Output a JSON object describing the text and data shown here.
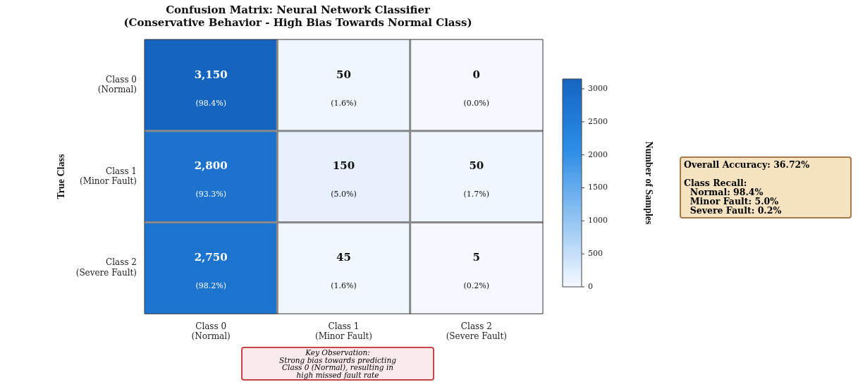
{
  "chart_data": {
    "type": "heatmap",
    "title": "Confusion Matrix: Neural Network Classifier",
    "subtitle": "(Conservative Behavior - High Bias Towards Normal Class)",
    "ylabel": "True Class",
    "clabel": "Number of Samples",
    "categories": [
      "Class 0\n(Normal)",
      "Class 1\n(Minor Fault)",
      "Class 2\n(Severe Fault)"
    ],
    "y_categories": [
      "Class 0\n(Normal)",
      "Class 1\n(Minor Fault)",
      "Class 2\n(Severe Fault)"
    ],
    "cells": [
      [
        3150,
        50,
        0
      ],
      [
        2800,
        150,
        50
      ],
      [
        2750,
        45,
        5
      ]
    ],
    "cell_labels": [
      [
        "3,150\n(98.4%)",
        "50\n(1.6%)",
        "0\n(0.0%)"
      ],
      [
        "2,800\n(93.3%)",
        "150\n(5.0%)",
        "50\n(1.7%)"
      ],
      [
        "2,750\n(98.2%)",
        "45\n(1.6%)",
        "5\n(0.2%)"
      ]
    ],
    "colors": [
      "#f5f9ff",
      "#8fc3f2",
      "#2b8ce6",
      "#1565c0"
    ],
    "clim": [
      0,
      3150
    ],
    "cticks": [
      0,
      500,
      1000,
      1500,
      2000,
      2500,
      3000
    ],
    "annotations": [
      "Key Observation:\nStrong bias towards predicting\nClass 0 (Normal), resulting in\nhigh missed fault rate",
      "Overall Accuracy: 36.72%\n\nClass Recall:\n  Normal: 98.4%\n  Minor Fault: 5.0%\n  Severe Fault: 0.2%"
    ]
  }
}
